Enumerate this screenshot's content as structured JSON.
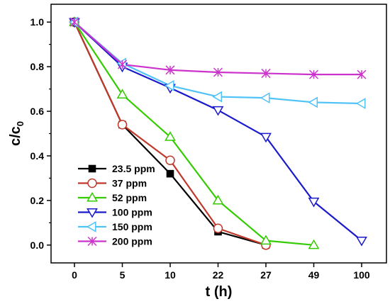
{
  "chart_data": {
    "type": "line",
    "xlabel": "t (h)",
    "ylabel": "c/c",
    "ylabel_subscript": "0",
    "categories": [
      "0",
      "5",
      "10",
      "22",
      "27",
      "49",
      "100"
    ],
    "yticks": [
      "0.0",
      "0.2",
      "0.4",
      "0.6",
      "0.8",
      "1.0"
    ],
    "ylim": [
      -0.08,
      1.08
    ],
    "grid": false,
    "legend_position": "bottom-left",
    "series": [
      {
        "name": "23.5 ppm",
        "marker": "square-filled",
        "color": "#000000",
        "values": [
          1.0,
          0.54,
          0.32,
          0.06,
          0.0,
          null,
          null
        ]
      },
      {
        "name": "37 ppm",
        "marker": "circle-open",
        "color": "#c0392b",
        "values": [
          1.0,
          0.54,
          0.38,
          0.075,
          0.0,
          null,
          null
        ]
      },
      {
        "name": "52 ppm",
        "marker": "triangle-up-open",
        "color": "#33cc00",
        "values": [
          1.0,
          0.675,
          0.485,
          0.2,
          0.02,
          0.0,
          null
        ]
      },
      {
        "name": "100 ppm",
        "marker": "triangle-down-open",
        "color": "#1a1acc",
        "values": [
          1.0,
          0.8,
          0.705,
          0.605,
          0.485,
          0.195,
          0.02
        ]
      },
      {
        "name": "150 ppm",
        "marker": "triangle-left-open",
        "color": "#4fc3f7",
        "values": [
          1.0,
          0.815,
          0.715,
          0.665,
          0.66,
          0.64,
          0.635
        ]
      },
      {
        "name": "200 ppm",
        "marker": "x-star",
        "color": "#cc33cc",
        "values": [
          1.0,
          0.81,
          0.785,
          0.775,
          0.77,
          0.765,
          0.765
        ]
      }
    ]
  }
}
